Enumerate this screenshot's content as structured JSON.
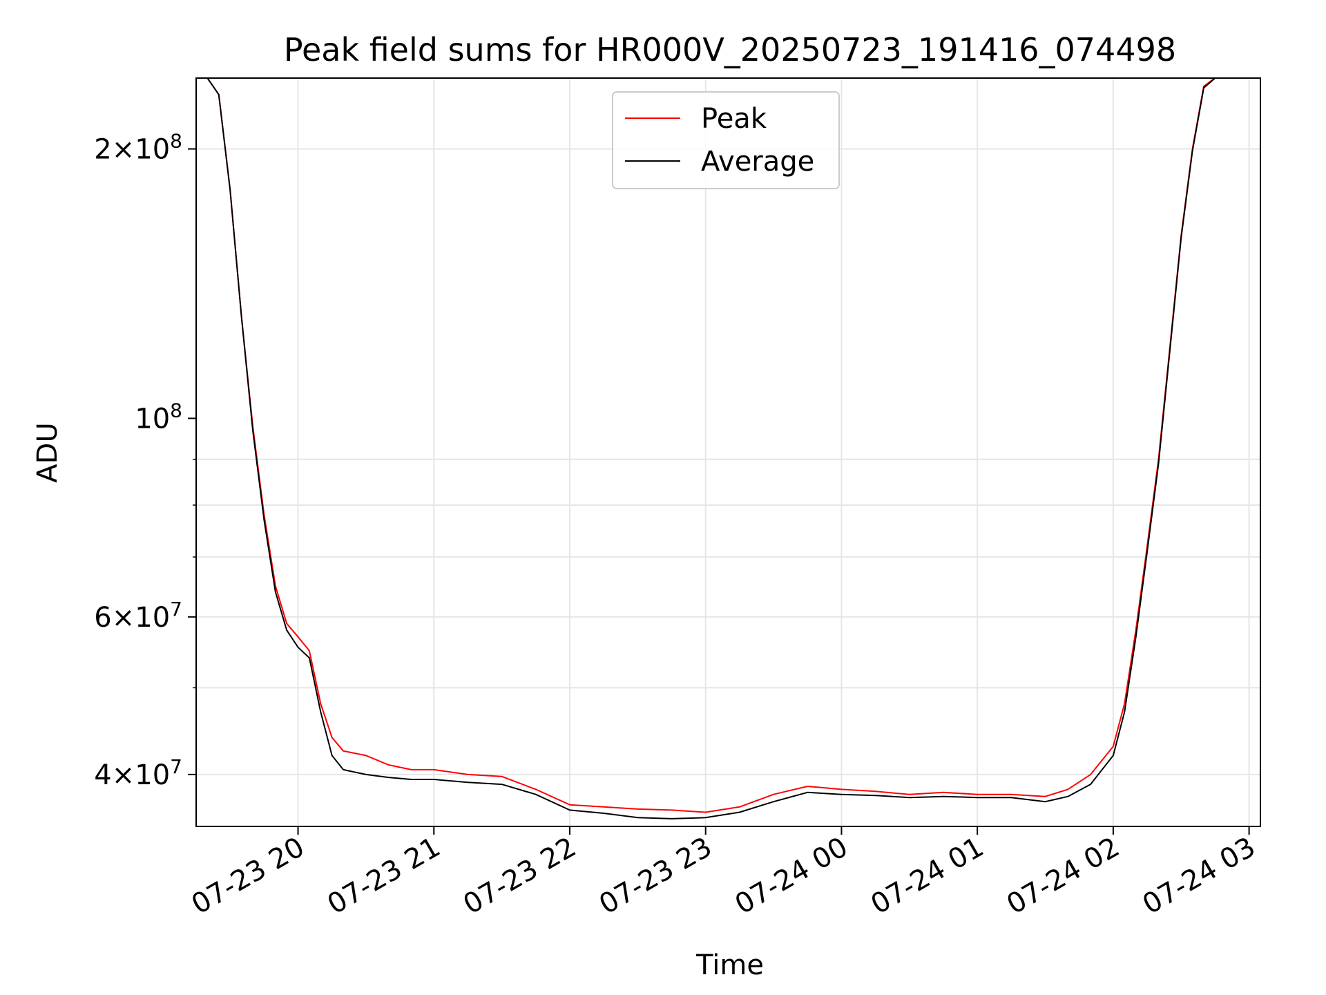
{
  "chart_data": {
    "type": "line",
    "title": "Peak field sums for HR000V_20250723_191416_074498",
    "xlabel": "Time",
    "ylabel": "ADU",
    "yscale": "log",
    "ylim": [
      35000000,
      240000000
    ],
    "xlim": [
      "07-23 19:15",
      "07-24 03:05"
    ],
    "grid": true,
    "legend_position": "top-center",
    "x_ticks": [
      "07-23 20",
      "07-23 21",
      "07-23 22",
      "07-23 23",
      "07-24 00",
      "07-24 01",
      "07-24 02",
      "07-24 03"
    ],
    "y_ticks": [
      {
        "value": 40000000,
        "label": "4 × 10^7",
        "mantissa": "4",
        "exponent": "7"
      },
      {
        "value": 60000000,
        "label": "6 × 10^7",
        "mantissa": "6",
        "exponent": "7"
      },
      {
        "value": 100000000,
        "label": "10^8",
        "mantissa": "",
        "exponent": "8"
      },
      {
        "value": 200000000,
        "label": "2 × 10^8",
        "mantissa": "2",
        "exponent": "8"
      }
    ],
    "x": [
      "07-23 19:15",
      "07-23 19:20",
      "07-23 19:25",
      "07-23 19:30",
      "07-23 19:35",
      "07-23 19:40",
      "07-23 19:45",
      "07-23 19:50",
      "07-23 19:55",
      "07-23 20:00",
      "07-23 20:05",
      "07-23 20:10",
      "07-23 20:15",
      "07-23 20:20",
      "07-23 20:30",
      "07-23 20:40",
      "07-23 20:50",
      "07-23 21:00",
      "07-23 21:15",
      "07-23 21:30",
      "07-23 21:45",
      "07-23 22:00",
      "07-23 22:15",
      "07-23 22:30",
      "07-23 22:45",
      "07-23 23:00",
      "07-23 23:15",
      "07-23 23:30",
      "07-23 23:45",
      "07-24 00:00",
      "07-24 00:15",
      "07-24 00:30",
      "07-24 00:45",
      "07-24 01:00",
      "07-24 01:15",
      "07-24 01:30",
      "07-24 01:40",
      "07-24 01:50",
      "07-24 02:00",
      "07-24 02:05",
      "07-24 02:10",
      "07-24 02:15",
      "07-24 02:20",
      "07-24 02:25",
      "07-24 02:30",
      "07-24 02:35",
      "07-24 02:40",
      "07-24 02:45",
      "07-24 02:50",
      "07-24 02:55"
    ],
    "series": [
      {
        "name": "Peak",
        "color": "#ff0000",
        "values": [
          240000000,
          240000000,
          230000000,
          180000000,
          130000000,
          98000000,
          78000000,
          65000000,
          59000000,
          57000000,
          55000000,
          48000000,
          44000000,
          42500000,
          42000000,
          41000000,
          40500000,
          40500000,
          40000000,
          39800000,
          38500000,
          37000000,
          36800000,
          36600000,
          36500000,
          36300000,
          36800000,
          38000000,
          38800000,
          38500000,
          38300000,
          38000000,
          38200000,
          38000000,
          38000000,
          37800000,
          38500000,
          40000000,
          43000000,
          48000000,
          58000000,
          72000000,
          90000000,
          120000000,
          160000000,
          200000000,
          235000000,
          240000000,
          240000000,
          240000000
        ]
      },
      {
        "name": "Average",
        "color": "#000000",
        "values": [
          240000000,
          240000000,
          230000000,
          180000000,
          130000000,
          97000000,
          77000000,
          64000000,
          58000000,
          55500000,
          54000000,
          47000000,
          42000000,
          40500000,
          40000000,
          39700000,
          39500000,
          39500000,
          39200000,
          39000000,
          38000000,
          36500000,
          36200000,
          35800000,
          35700000,
          35800000,
          36300000,
          37300000,
          38200000,
          38000000,
          37900000,
          37700000,
          37800000,
          37700000,
          37700000,
          37300000,
          37800000,
          39000000,
          42000000,
          47000000,
          57000000,
          71000000,
          89000000,
          119000000,
          159000000,
          199000000,
          234000000,
          240000000,
          240000000,
          240000000
        ]
      }
    ]
  }
}
